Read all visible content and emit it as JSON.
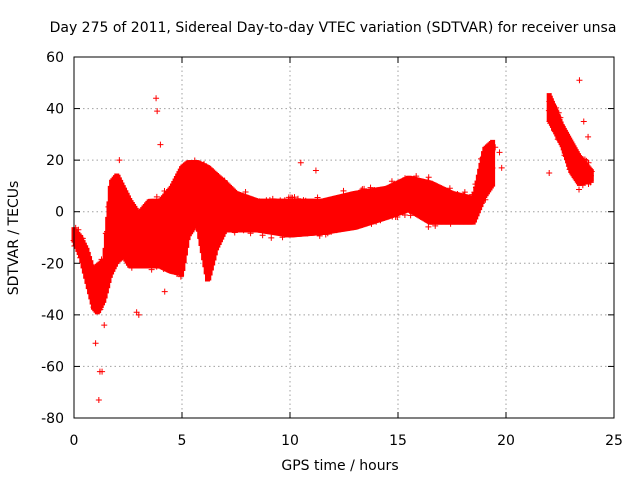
{
  "chart_data": {
    "type": "scatter",
    "title": "Day 275 of 2011, Sidereal Day-to-day VTEC variation (SDTVAR) for receiver unsa",
    "xlabel": "GPS time / hours",
    "ylabel": "SDTVAR / TECUs",
    "xlim": [
      0,
      25
    ],
    "ylim": [
      -80,
      60
    ],
    "xticks": [
      0,
      5,
      10,
      15,
      20,
      25
    ],
    "yticks": [
      -80,
      -60,
      -40,
      -20,
      0,
      20,
      40,
      60
    ],
    "grid": true,
    "marker": "+",
    "color": "#ff0000",
    "series": [
      {
        "name": "SDTVAR",
        "envelope": [
          {
            "x": 0.0,
            "low": -12,
            "high": -6
          },
          {
            "x": 0.3,
            "low": -18,
            "high": -9
          },
          {
            "x": 0.6,
            "low": -28,
            "high": -14
          },
          {
            "x": 0.9,
            "low": -38,
            "high": -22
          },
          {
            "x": 1.1,
            "low": -40,
            "high": -20
          },
          {
            "x": 1.4,
            "low": -35,
            "high": -18
          },
          {
            "x": 1.7,
            "low": -25,
            "high": 12
          },
          {
            "x": 2.0,
            "low": -20,
            "high": 15
          },
          {
            "x": 2.3,
            "low": -18,
            "high": 10
          },
          {
            "x": 2.6,
            "low": -22,
            "high": 5
          },
          {
            "x": 3.0,
            "low": -22,
            "high": 0
          },
          {
            "x": 3.5,
            "low": -22,
            "high": 5
          },
          {
            "x": 4.0,
            "low": -22,
            "high": 5
          },
          {
            "x": 4.5,
            "low": -24,
            "high": 10
          },
          {
            "x": 5.0,
            "low": -25,
            "high": 18
          },
          {
            "x": 5.3,
            "low": -10,
            "high": 20
          },
          {
            "x": 5.7,
            "low": -5,
            "high": 20
          },
          {
            "x": 6.2,
            "low": -28,
            "high": 18
          },
          {
            "x": 6.6,
            "low": -15,
            "high": 15
          },
          {
            "x": 7.0,
            "low": -8,
            "high": 12
          },
          {
            "x": 7.5,
            "low": -8,
            "high": 8
          },
          {
            "x": 8.5,
            "low": -8,
            "high": 5
          },
          {
            "x": 10.0,
            "low": -10,
            "high": 5
          },
          {
            "x": 11.5,
            "low": -9,
            "high": 5
          },
          {
            "x": 13.0,
            "low": -7,
            "high": 8
          },
          {
            "x": 14.5,
            "low": -3,
            "high": 10
          },
          {
            "x": 15.5,
            "low": 0,
            "high": 14
          },
          {
            "x": 16.5,
            "low": -5,
            "high": 12
          },
          {
            "x": 17.5,
            "low": -5,
            "high": 8
          },
          {
            "x": 18.5,
            "low": -5,
            "high": 6
          },
          {
            "x": 19.0,
            "low": 5,
            "high": 25
          },
          {
            "x": 19.4,
            "low": 10,
            "high": 28
          }
        ],
        "envelope2": [
          {
            "x": 22.0,
            "low": 35,
            "high": 46
          },
          {
            "x": 22.3,
            "low": 30,
            "high": 40
          },
          {
            "x": 22.6,
            "low": 25,
            "high": 34
          },
          {
            "x": 23.0,
            "low": 15,
            "high": 28
          },
          {
            "x": 23.4,
            "low": 10,
            "high": 22
          },
          {
            "x": 23.8,
            "low": 11,
            "high": 18
          },
          {
            "x": 24.0,
            "low": 12,
            "high": 16
          }
        ],
        "outliers": [
          {
            "x": 1.0,
            "y": -51
          },
          {
            "x": 1.2,
            "y": -62
          },
          {
            "x": 1.3,
            "y": -62
          },
          {
            "x": 1.15,
            "y": -73
          },
          {
            "x": 1.4,
            "y": -44
          },
          {
            "x": 3.8,
            "y": 44
          },
          {
            "x": 3.85,
            "y": 39
          },
          {
            "x": 4.0,
            "y": 26
          },
          {
            "x": 4.2,
            "y": -31
          },
          {
            "x": 3.0,
            "y": -40
          },
          {
            "x": 2.1,
            "y": 20
          },
          {
            "x": 2.9,
            "y": -39
          },
          {
            "x": 10.5,
            "y": 19
          },
          {
            "x": 11.2,
            "y": 16
          },
          {
            "x": 19.5,
            "y": 25
          },
          {
            "x": 19.7,
            "y": 23
          },
          {
            "x": 19.8,
            "y": 17
          },
          {
            "x": 22.0,
            "y": 15
          },
          {
            "x": 23.4,
            "y": 51
          },
          {
            "x": 23.8,
            "y": 29
          },
          {
            "x": 23.6,
            "y": 35
          }
        ]
      }
    ]
  }
}
